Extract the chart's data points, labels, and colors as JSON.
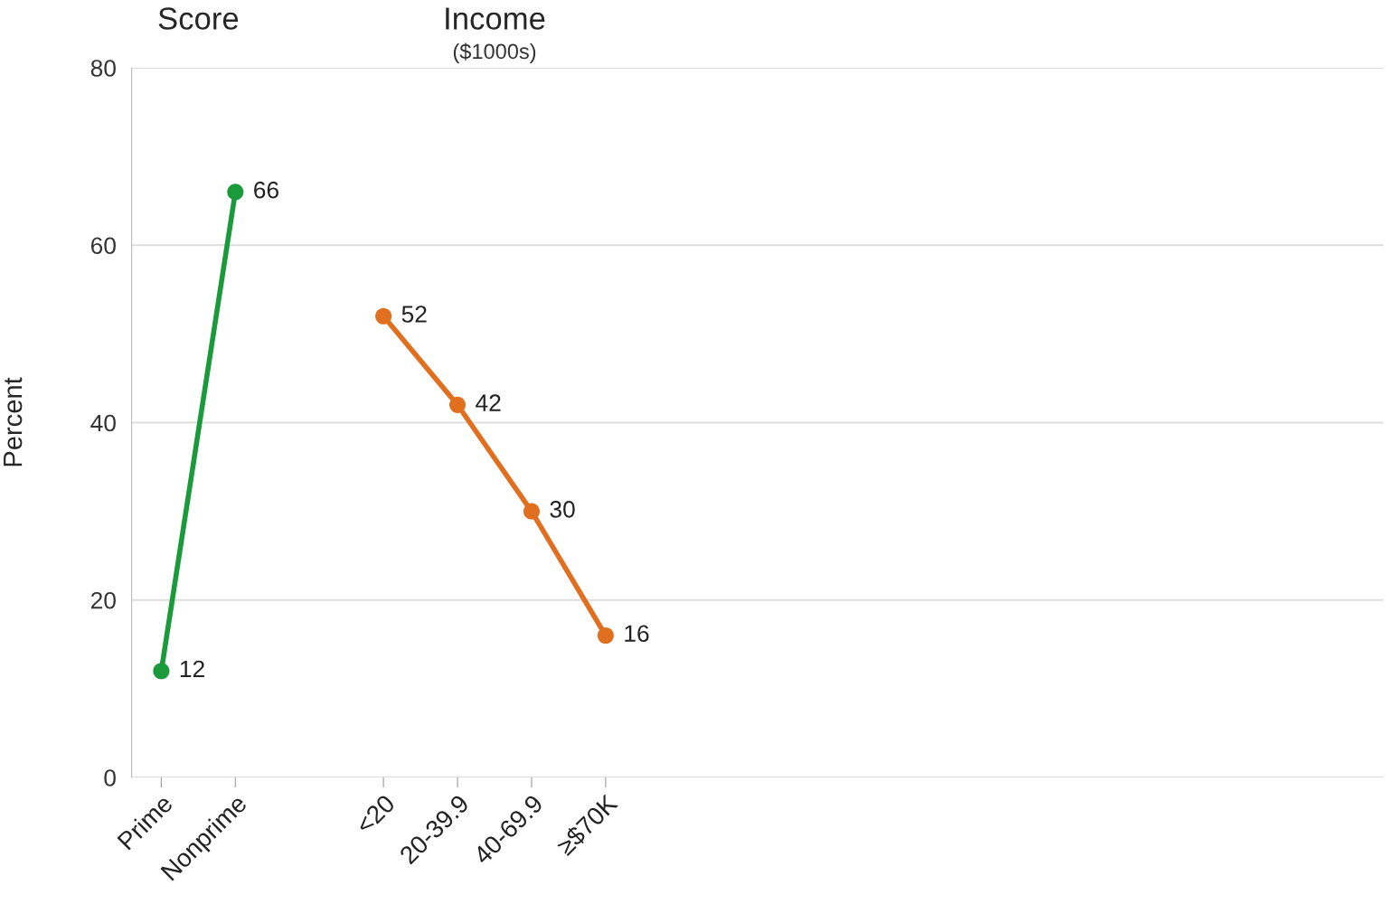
{
  "chart_data": {
    "type": "line",
    "ylabel": "Percent",
    "categories": [
      "Prime",
      "Nonprime",
      null,
      "<20",
      "20-39.9",
      "40-69.9",
      "≥$70K",
      null,
      null,
      null,
      null,
      null,
      null,
      null,
      null,
      null,
      null
    ],
    "series": [
      {
        "color": "#1a9a3a",
        "values": [
          12,
          66,
          null,
          null,
          null,
          null,
          null,
          null,
          null,
          null,
          null,
          null,
          null,
          null,
          null,
          null,
          null
        ]
      },
      {
        "color": "#e07020",
        "values": [
          null,
          null,
          null,
          52,
          42,
          30,
          16,
          null,
          null,
          null,
          null,
          null,
          null,
          null,
          null,
          null,
          null
        ]
      }
    ],
    "annotations": [
      "Score",
      "Income",
      "($1000s)"
    ],
    "ylim": [
      0,
      80
    ],
    "yticks": [
      0,
      20,
      40,
      60,
      80
    ],
    "grid": "y",
    "marker": "circle",
    "line_style": "solid",
    "data_labels": true
  }
}
